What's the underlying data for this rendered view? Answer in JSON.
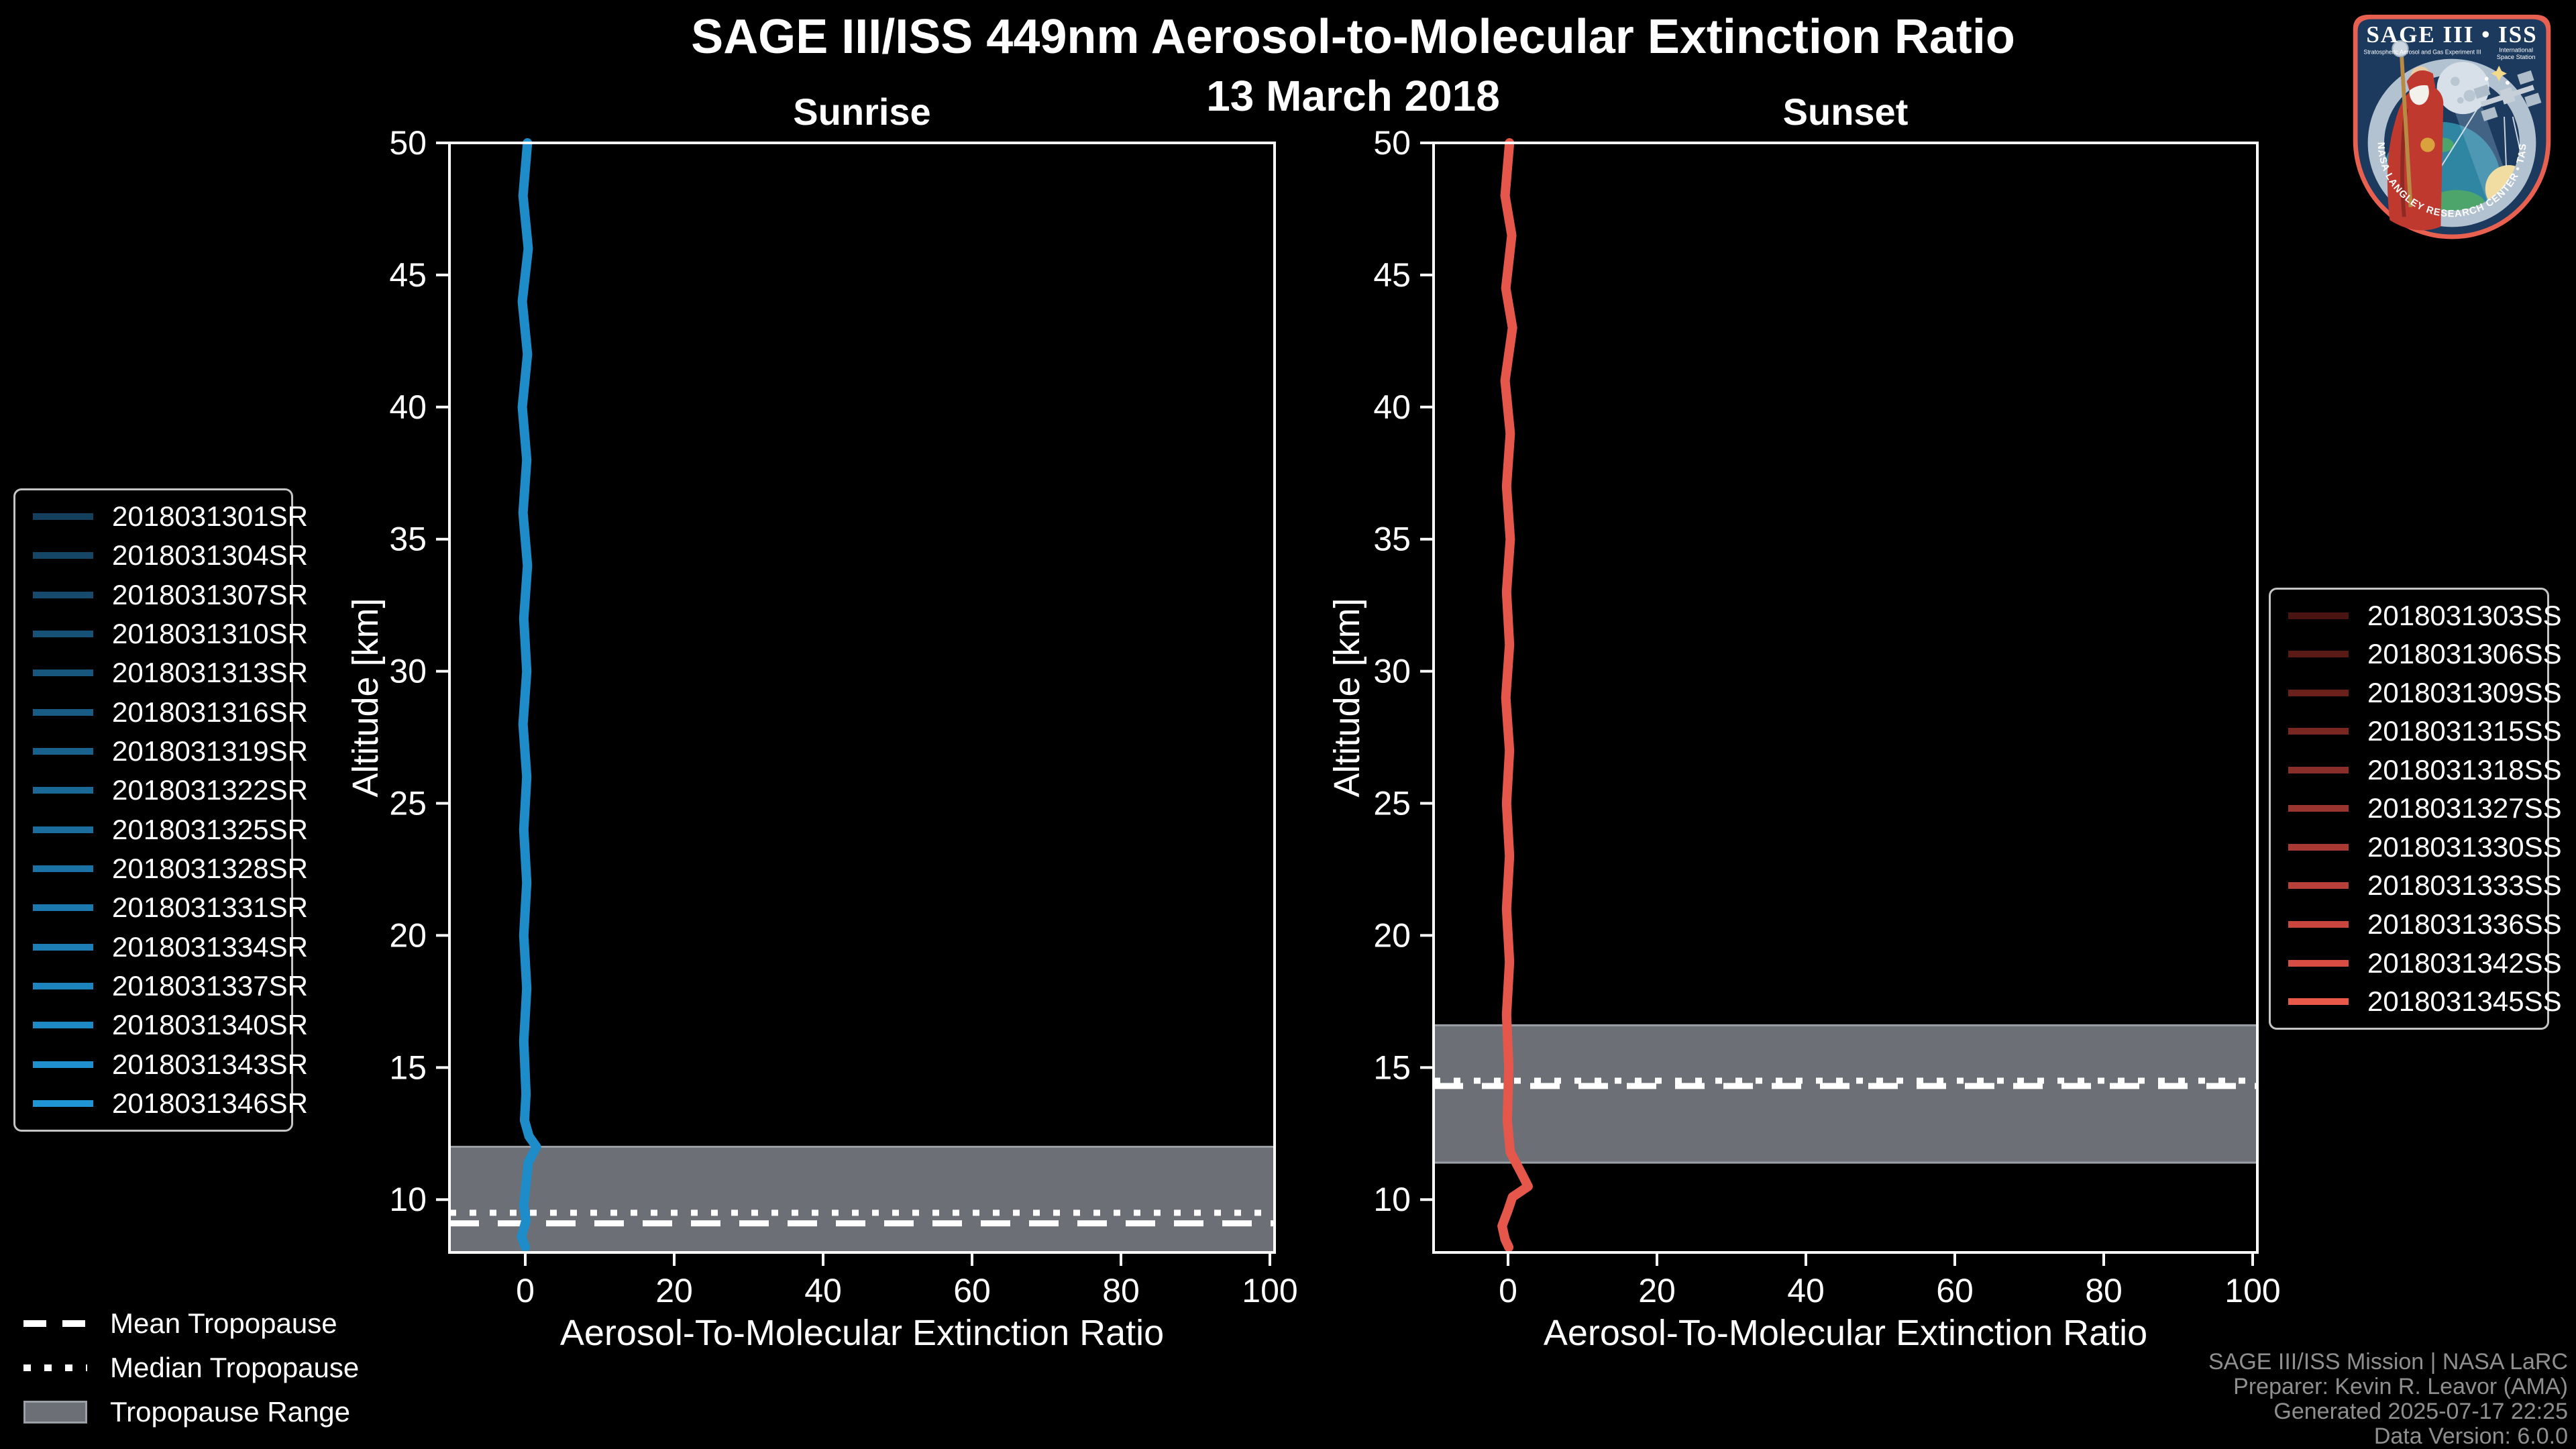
{
  "header": {
    "title": "SAGE III/ISS 449nm Aerosol-to-Molecular Extinction Ratio",
    "date": "13 March 2018"
  },
  "chart_data": [
    {
      "type": "line",
      "title": "Sunrise",
      "xlabel": "Aerosol-To-Molecular Extinction Ratio",
      "ylabel": "Altitude [km]",
      "xlim": [
        -10,
        101
      ],
      "ylim": [
        8,
        50
      ],
      "xtick_labels": [
        "0",
        "20",
        "40",
        "60",
        "80",
        "100"
      ],
      "ytick_labels": [
        "10",
        "15",
        "20",
        "25",
        "30",
        "35",
        "40",
        "45",
        "50"
      ],
      "grid": false,
      "background": "#000000",
      "line_color": "#1d8cc8",
      "legend_position": "outside-left",
      "mean_tropopause_km": 9.1,
      "median_tropopause_km": 9.5,
      "tropopause_range_km": [
        8.0,
        12.0
      ],
      "profile_note": "16 overlapping sunrise profiles, all near ratio 0 from 8-50 km",
      "profile": {
        "ratio": [
          0.3,
          -0.3,
          0.4,
          -0.4,
          0.3,
          -0.4,
          0.2,
          -0.3,
          0.3,
          -0.2,
          0.2,
          -0.3,
          0.2,
          -0.2,
          0.2,
          -0.2,
          0.2,
          -0.2,
          0.1,
          -0.1,
          0.5,
          1.5,
          0.4,
          0.1,
          -0.2,
          0.1,
          -0.5,
          0.0
        ],
        "altitude_km": [
          50,
          48,
          46,
          44,
          42,
          40,
          38,
          36,
          34,
          32,
          30,
          28,
          26,
          24,
          22,
          20,
          18,
          16,
          14,
          13,
          12.4,
          12.0,
          11.4,
          10.6,
          9.8,
          9.2,
          8.6,
          8.2
        ]
      },
      "series": [
        {
          "label": "2018031301SR",
          "color": "#14405e"
        },
        {
          "label": "2018031304SR",
          "color": "#154666"
        },
        {
          "label": "2018031307SR",
          "color": "#164b6e"
        },
        {
          "label": "2018031310SR",
          "color": "#165176"
        },
        {
          "label": "2018031313SR",
          "color": "#17577e"
        },
        {
          "label": "2018031316SR",
          "color": "#185c86"
        },
        {
          "label": "2018031319SR",
          "color": "#19628e"
        },
        {
          "label": "2018031322SR",
          "color": "#1a6896"
        },
        {
          "label": "2018031325SR",
          "color": "#1a6d9d"
        },
        {
          "label": "2018031328SR",
          "color": "#1b73a5"
        },
        {
          "label": "2018031331SR",
          "color": "#1c79ad"
        },
        {
          "label": "2018031334SR",
          "color": "#1d7eb5"
        },
        {
          "label": "2018031337SR",
          "color": "#1e84bd"
        },
        {
          "label": "2018031340SR",
          "color": "#1e8ac5"
        },
        {
          "label": "2018031343SR",
          "color": "#1f8fcd"
        },
        {
          "label": "2018031346SR",
          "color": "#2095d5"
        }
      ]
    },
    {
      "type": "line",
      "title": "Sunset",
      "xlabel": "Aerosol-To-Molecular Extinction Ratio",
      "ylabel": "Altitude [km]",
      "xlim": [
        -10,
        101
      ],
      "ylim": [
        8,
        50
      ],
      "xtick_labels": [
        "0",
        "20",
        "40",
        "60",
        "80",
        "100"
      ],
      "ytick_labels": [
        "10",
        "15",
        "20",
        "25",
        "30",
        "35",
        "40",
        "45",
        "50"
      ],
      "grid": false,
      "background": "#000000",
      "line_color": "#e5574a",
      "legend_position": "outside-right",
      "mean_tropopause_km": 14.3,
      "median_tropopause_km": 14.5,
      "tropopause_range_km": [
        11.4,
        16.6
      ],
      "profile_note": "11 overlapping sunset profiles, all near ratio 0 from 8-50 km",
      "profile": {
        "ratio": [
          0.2,
          -0.4,
          0.5,
          -0.3,
          0.6,
          -0.4,
          0.3,
          -0.2,
          0.3,
          -0.2,
          0.2,
          -0.3,
          0.2,
          -0.2,
          0.2,
          -0.2,
          0.2,
          -0.2,
          0.1,
          -0.1,
          0.3,
          1.8,
          2.7,
          0.6,
          0.0,
          -0.8,
          -0.4,
          0.1
        ],
        "altitude_km": [
          50,
          48,
          46.5,
          44.5,
          43,
          41,
          39,
          37,
          35,
          33,
          31,
          29,
          27,
          25,
          23,
          21,
          19,
          17,
          15,
          13,
          11.8,
          11.0,
          10.5,
          10.1,
          9.6,
          9.0,
          8.5,
          8.2
        ]
      },
      "series": [
        {
          "label": "2018031303SS",
          "color": "#4a1511"
        },
        {
          "label": "2018031306SS",
          "color": "#5a1b17"
        },
        {
          "label": "2018031309SS",
          "color": "#6a211c"
        },
        {
          "label": "2018031315SS",
          "color": "#7a2721"
        },
        {
          "label": "2018031318SS",
          "color": "#892e28"
        },
        {
          "label": "2018031327SS",
          "color": "#99342e"
        },
        {
          "label": "2018031330SS",
          "color": "#a93a33"
        },
        {
          "label": "2018031333SS",
          "color": "#b94039"
        },
        {
          "label": "2018031336SS",
          "color": "#c8463e"
        },
        {
          "label": "2018031342SS",
          "color": "#d84c44"
        },
        {
          "label": "2018031345SS",
          "color": "#e8594a"
        }
      ]
    }
  ],
  "tropopause_legend": {
    "mean_label": "Mean Tropopause",
    "median_label": "Median Tropopause",
    "range_label": "Tropopause Range",
    "range_color": "#6c7076",
    "line_color": "#ffffff"
  },
  "attribution": {
    "lines": [
      "SAGE III/ISS Mission | NASA LaRC",
      "Preparer: Kevin R. Leavor (AMA)",
      "Generated 2025-07-17 22:25",
      "Data Version: 6.0.0"
    ]
  },
  "logo": {
    "title": "SAGE III • ISS",
    "program_left": "Stratospheric Aerosol and Gas Experiment III",
    "program_right_1": "International",
    "program_right_2": "Space Station",
    "ring_text": "BALL • NASA LANGLEY RESEARCH CENTER • TAS-I • ESA",
    "border_color": "#e8604f",
    "field_color": "#1c3a5e"
  }
}
